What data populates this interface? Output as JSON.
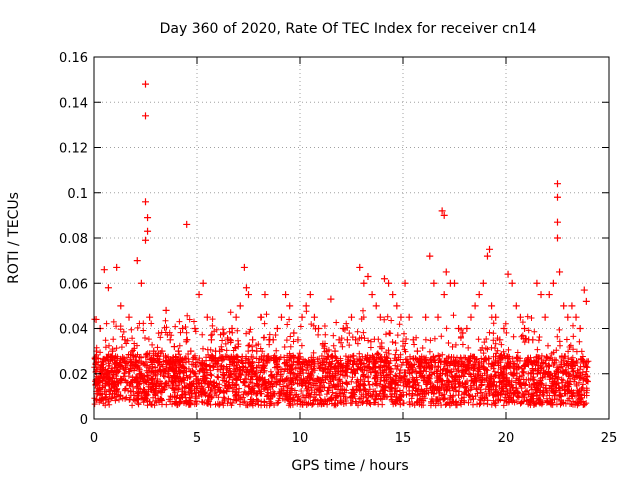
{
  "chart_data": {
    "type": "scatter",
    "title": "Day 360 of 2020, Rate Of TEC Index for receiver cn14",
    "xlabel": "GPS time / hours",
    "ylabel": "ROTI / TECUs",
    "xlim": [
      0,
      25
    ],
    "ylim": [
      0,
      0.16
    ],
    "xticks": [
      0,
      5,
      10,
      15,
      20,
      25
    ],
    "yticks": [
      0,
      0.02,
      0.04,
      0.06,
      0.08,
      0.1,
      0.12,
      0.14,
      0.16
    ],
    "grid": true,
    "marker": "+",
    "color": "#ff0000",
    "series": [
      {
        "name": "ROTI",
        "x": [
          0.1,
          0.3,
          0.5,
          0.7,
          0.9,
          1.1,
          1.3,
          1.5,
          1.7,
          1.9,
          2.1,
          2.3,
          2.5,
          2.5,
          2.5,
          2.6,
          2.6,
          2.5,
          2.7,
          2.9,
          3.1,
          3.3,
          3.5,
          3.7,
          3.9,
          4.1,
          4.3,
          4.5,
          4.5,
          4.7,
          4.9,
          5.1,
          5.3,
          5.5,
          5.7,
          5.9,
          6.1,
          6.3,
          6.5,
          6.7,
          6.9,
          7.1,
          7.3,
          7.4,
          7.5,
          7.7,
          7.9,
          8.1,
          8.3,
          8.5,
          8.7,
          8.9,
          9.1,
          9.3,
          9.5,
          9.7,
          9.9,
          10.1,
          10.3,
          10.5,
          10.7,
          10.9,
          11.1,
          11.3,
          11.5,
          11.7,
          11.9,
          12.1,
          12.3,
          12.5,
          12.7,
          12.9,
          13.1,
          13.3,
          13.5,
          13.7,
          13.9,
          14.1,
          14.3,
          14.5,
          14.7,
          14.9,
          15.1,
          15.3,
          15.5,
          15.7,
          15.9,
          16.1,
          16.3,
          16.5,
          16.7,
          16.9,
          17.0,
          17.0,
          17.1,
          17.3,
          17.5,
          17.7,
          17.9,
          18.1,
          18.3,
          18.5,
          18.7,
          18.9,
          19.1,
          19.2,
          19.3,
          19.5,
          19.7,
          19.9,
          20.1,
          20.3,
          20.5,
          20.7,
          20.9,
          21.1,
          21.3,
          21.5,
          21.7,
          21.9,
          22.1,
          22.3,
          22.5,
          22.5,
          22.5,
          22.5,
          22.6,
          22.8,
          23.0,
          23.2,
          23.4,
          23.6,
          23.8,
          23.9
        ],
        "y": [
          0.044,
          0.04,
          0.066,
          0.058,
          0.03,
          0.067,
          0.05,
          0.035,
          0.045,
          0.028,
          0.07,
          0.06,
          0.148,
          0.134,
          0.096,
          0.089,
          0.083,
          0.079,
          0.045,
          0.03,
          0.025,
          0.03,
          0.048,
          0.035,
          0.032,
          0.03,
          0.04,
          0.086,
          0.035,
          0.03,
          0.04,
          0.055,
          0.06,
          0.045,
          0.035,
          0.03,
          0.03,
          0.038,
          0.035,
          0.04,
          0.045,
          0.05,
          0.067,
          0.058,
          0.055,
          0.035,
          0.03,
          0.045,
          0.055,
          0.035,
          0.035,
          0.04,
          0.045,
          0.055,
          0.05,
          0.038,
          0.035,
          0.045,
          0.05,
          0.055,
          0.045,
          0.04,
          0.025,
          0.03,
          0.053,
          0.03,
          0.035,
          0.04,
          0.035,
          0.045,
          0.035,
          0.067,
          0.06,
          0.063,
          0.055,
          0.05,
          0.045,
          0.062,
          0.06,
          0.055,
          0.05,
          0.045,
          0.06,
          0.045,
          0.035,
          0.03,
          0.025,
          0.045,
          0.072,
          0.06,
          0.045,
          0.092,
          0.09,
          0.055,
          0.065,
          0.06,
          0.06,
          0.04,
          0.038,
          0.04,
          0.045,
          0.05,
          0.055,
          0.06,
          0.072,
          0.075,
          0.05,
          0.045,
          0.035,
          0.04,
          0.064,
          0.06,
          0.05,
          0.045,
          0.04,
          0.035,
          0.035,
          0.06,
          0.055,
          0.045,
          0.055,
          0.06,
          0.104,
          0.098,
          0.087,
          0.08,
          0.065,
          0.05,
          0.045,
          0.05,
          0.045,
          0.04,
          0.057,
          0.052
        ]
      }
    ]
  }
}
